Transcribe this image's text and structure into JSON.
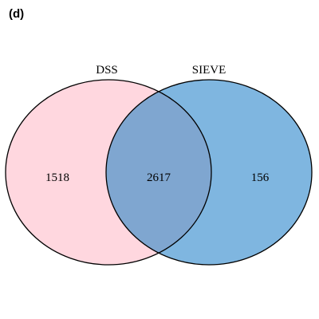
{
  "panel_label": "(d)",
  "sets": [
    {
      "name": "DSS",
      "color": "#ffd7df"
    },
    {
      "name": "SIEVE",
      "color": "#7fb6e0"
    }
  ],
  "overlap_color": "#7fa6d0",
  "regions": {
    "left_only": "1518",
    "intersection": "2617",
    "right_only": "156"
  }
}
